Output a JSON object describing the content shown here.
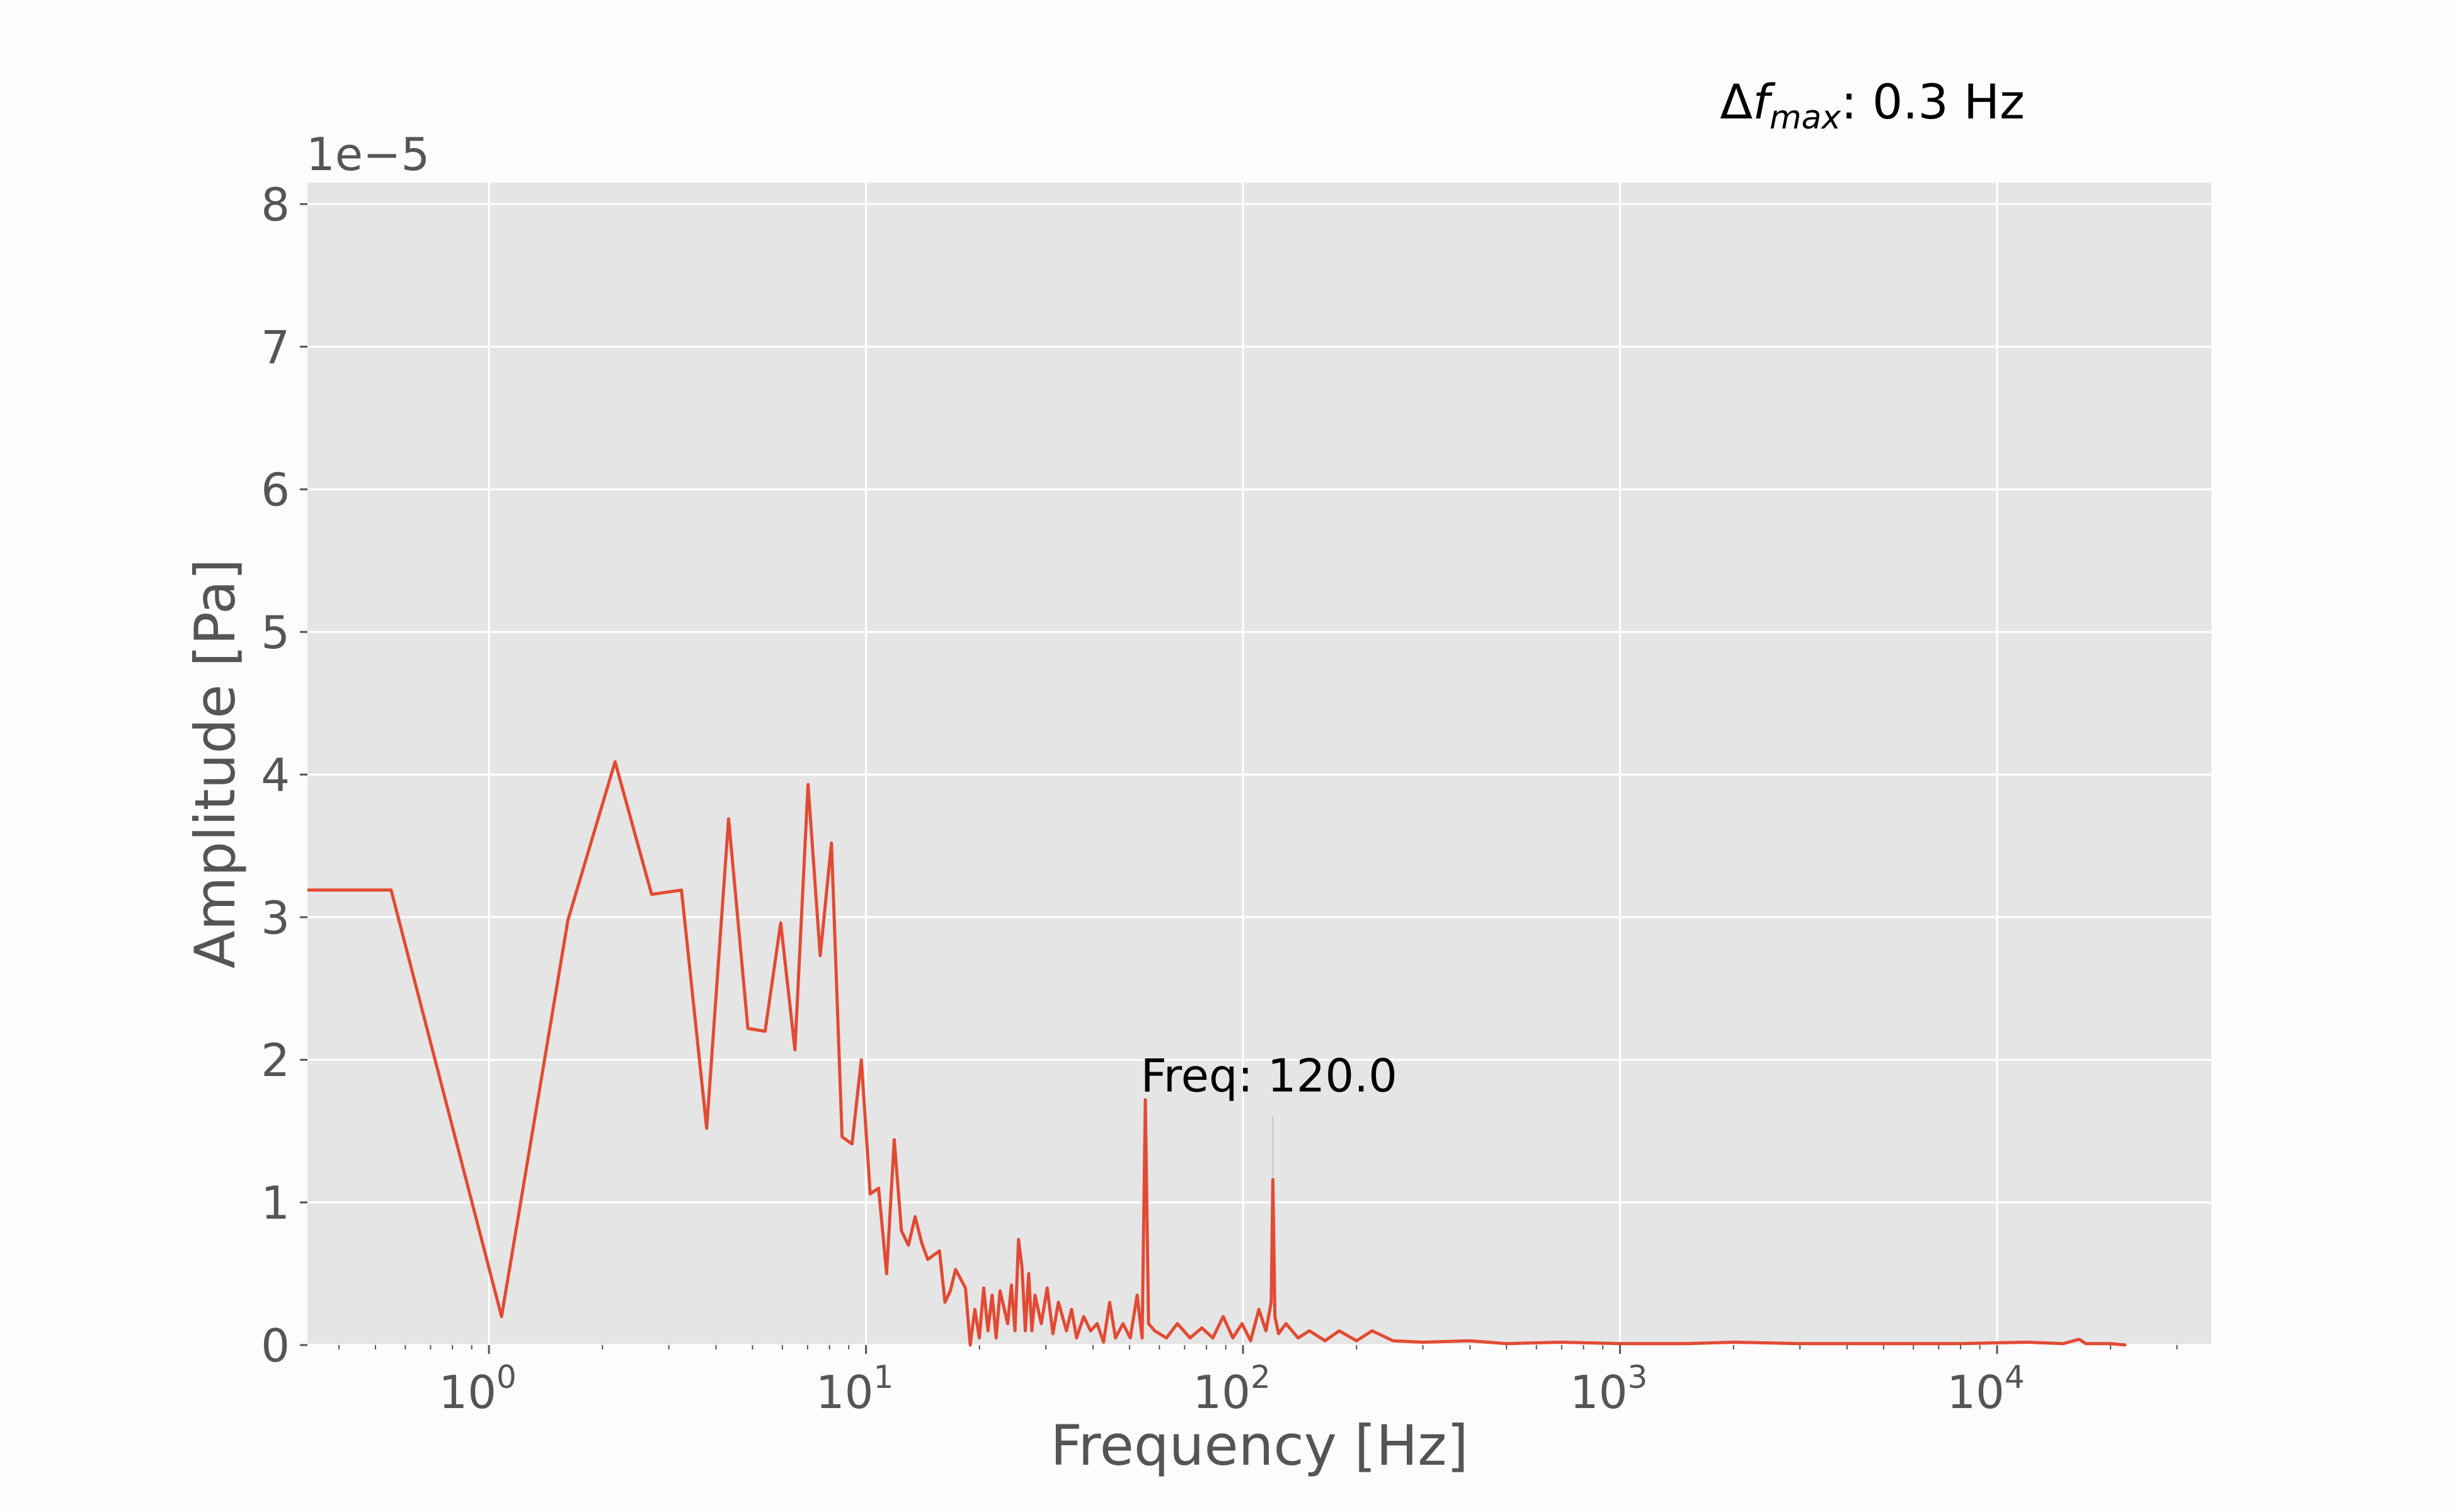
{
  "info_text": {
    "prefix": "Δ",
    "symbol": "f",
    "subscript": "max",
    "suffix": ": 0.3 Hz"
  },
  "chart_data": {
    "type": "line",
    "xlabel": "Frequency [Hz]",
    "ylabel": "Amplitude [Pa]",
    "x_scale": "log",
    "xlim": [
      0.33,
      37000
    ],
    "ylim": [
      0,
      8.15e-05
    ],
    "y_multiplier": "1e−5",
    "grid": true,
    "x_ticks": [
      {
        "value": 1,
        "base": "10",
        "exp": "0"
      },
      {
        "value": 10,
        "base": "10",
        "exp": "1"
      },
      {
        "value": 100,
        "base": "10",
        "exp": "2"
      },
      {
        "value": 1000,
        "base": "10",
        "exp": "3"
      },
      {
        "value": 10000,
        "base": "10",
        "exp": "4"
      }
    ],
    "y_ticks": [
      {
        "value": 0,
        "label": "0"
      },
      {
        "value": 1e-05,
        "label": "1"
      },
      {
        "value": 2e-05,
        "label": "2"
      },
      {
        "value": 3e-05,
        "label": "3"
      },
      {
        "value": 4e-05,
        "label": "4"
      },
      {
        "value": 5e-05,
        "label": "5"
      },
      {
        "value": 6e-05,
        "label": "6"
      },
      {
        "value": 7e-05,
        "label": "7"
      },
      {
        "value": 8e-05,
        "label": "8"
      }
    ],
    "line_color": "#e24a33",
    "background_color": "#e5e5e5",
    "series": [
      {
        "x": [
          0.33,
          0.55,
          1.08,
          1.62,
          2.16,
          2.7,
          3.24,
          3.78,
          4.32,
          4.86,
          5.4,
          5.94,
          6.48,
          7.02,
          7.56,
          8.1,
          8.64,
          9.18,
          9.72,
          10.26,
          10.8,
          11.34,
          11.88,
          12.42,
          12.96,
          13.5,
          14.04,
          14.58,
          15.66,
          16.2,
          16.74,
          17.28,
          18.36,
          18.9,
          19.44,
          19.98,
          20.52,
          21.06,
          21.6,
          22.14,
          22.68,
          23.76,
          24.3,
          24.84,
          25.38,
          25.92,
          26.46,
          27.0,
          27.54,
          28.08,
          29.16,
          30.24,
          31.32,
          32.4,
          34.02,
          35.1,
          36.18,
          37.8,
          39.42,
          41.04,
          42.66,
          44.28,
          45.9,
          48.06,
          50.22,
          52.38,
          54.0,
          55.08,
          56.16,
          58.32,
          62.64,
          66.96,
          72.36,
          77.76,
          83.16,
          88.56,
          93.96,
          99.36,
          104.76,
          110.16,
          115.02,
          118.8,
          120.0,
          121.5,
          124.2,
          130.0,
          140.0,
          150.0,
          165.0,
          180.0,
          200.0,
          220.0,
          250.0,
          300.0,
          400.0,
          500.0,
          700.0,
          1000.0,
          1500.0,
          2000.0,
          3000.0,
          5000.0,
          8000.0,
          12000.0,
          15000.0,
          16500.0,
          17200.0,
          18000.0,
          20000.0,
          22000.0
        ],
        "y": [
          3.19e-05,
          3.19e-05,
          2e-06,
          2.98e-05,
          4.09e-05,
          3.16e-05,
          3.19e-05,
          1.52e-05,
          3.69e-05,
          2.22e-05,
          2.2e-05,
          2.96e-05,
          2.07e-05,
          3.93e-05,
          2.73e-05,
          3.52e-05,
          1.46e-05,
          1.41e-05,
          2e-05,
          1.06e-05,
          1.1e-05,
          5e-06,
          1.44e-05,
          8e-06,
          7e-06,
          9e-06,
          7.2e-06,
          6e-06,
          6.6e-06,
          3e-06,
          3.8e-06,
          5.3e-06,
          4e-06,
          0.0,
          2.5e-06,
          5e-07,
          4e-06,
          1e-06,
          3.5e-06,
          5e-07,
          3.8e-06,
          1.5e-06,
          4.2e-06,
          1e-06,
          7.4e-06,
          5.5e-06,
          1e-06,
          5e-06,
          1e-06,
          3.5e-06,
          1.5e-06,
          4e-06,
          8e-07,
          3e-06,
          1e-06,
          2.5e-06,
          5e-07,
          2e-06,
          1e-06,
          1.5e-06,
          2e-07,
          3e-06,
          5e-07,
          1.5e-06,
          5e-07,
          3.5e-06,
          5e-07,
          1.72e-05,
          1.5e-06,
          1e-06,
          5e-07,
          1.5e-06,
          5e-07,
          1.2e-06,
          5e-07,
          2e-06,
          5e-07,
          1.5e-06,
          3e-07,
          2.5e-06,
          1e-06,
          3e-06,
          1.16e-05,
          2e-06,
          8e-07,
          1.5e-06,
          5e-07,
          1e-06,
          3e-07,
          1e-06,
          3e-07,
          1e-06,
          3e-07,
          2e-07,
          3e-07,
          1e-07,
          2e-07,
          1e-07,
          1e-07,
          2e-07,
          1e-07,
          1e-07,
          1e-07,
          2e-07,
          1e-07,
          4e-07,
          1e-07,
          1e-07,
          1e-07,
          0.0
        ]
      }
    ],
    "annotation": {
      "text": "Freq: 120.0",
      "x": 120.0,
      "y": 1.16e-05
    }
  }
}
